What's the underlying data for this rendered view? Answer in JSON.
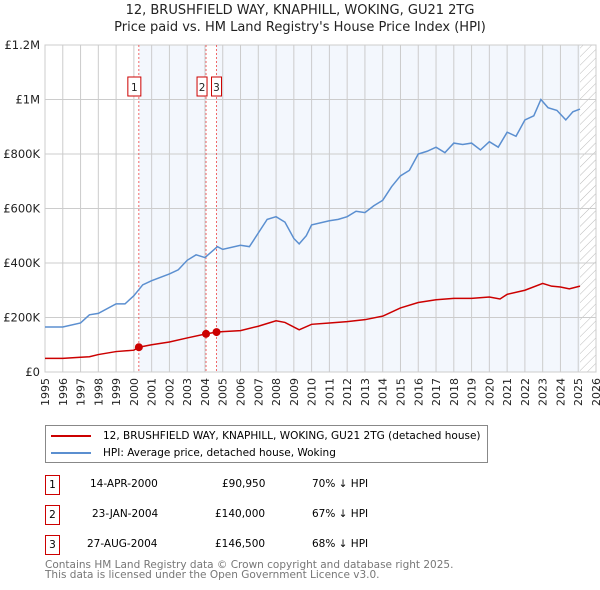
{
  "chart_data": {
    "type": "line",
    "title": "12, BRUSHFIELD WAY, KNAPHILL, WOKING, GU21 2TG",
    "subtitle": "Price paid vs. HM Land Registry's House Price Index (HPI)",
    "xlim": [
      1995,
      2026
    ],
    "ylim": [
      0,
      1200000
    ],
    "x_ticks": [
      "1995",
      "1996",
      "1997",
      "1998",
      "1999",
      "2000",
      "2001",
      "2002",
      "2003",
      "2004",
      "2005",
      "2006",
      "2007",
      "2008",
      "2009",
      "2010",
      "2011",
      "2012",
      "2013",
      "2014",
      "2015",
      "2016",
      "2017",
      "2018",
      "2019",
      "2020",
      "2021",
      "2022",
      "2023",
      "2024",
      "2025",
      "2026"
    ],
    "y_ticks": [
      {
        "v": 0,
        "label": "£0"
      },
      {
        "v": 200000,
        "label": "£200K"
      },
      {
        "v": 400000,
        "label": "£400K"
      },
      {
        "v": 600000,
        "label": "£600K"
      },
      {
        "v": 800000,
        "label": "£800K"
      },
      {
        "v": 1000000,
        "label": "£1M"
      },
      {
        "v": 1200000,
        "label": "£1.2M"
      }
    ],
    "grid": true,
    "series": [
      {
        "name": "12, BRUSHFIELD WAY, KNAPHILL, WOKING, GU21 2TG (detached house)",
        "color": "#cc0000",
        "x": [
          1995,
          1996,
          1997,
          1997.5,
          1998,
          1999,
          2000,
          2000.28,
          2001,
          2002,
          2003,
          2004.06,
          2004.65,
          2005,
          2006,
          2007,
          2007.5,
          2008,
          2008.5,
          2009.3,
          2010,
          2011,
          2012,
          2013,
          2014,
          2015,
          2016,
          2017,
          2018,
          2019,
          2020,
          2020.6,
          2021,
          2022,
          2023,
          2023.5,
          2024,
          2024.5,
          2025.1
        ],
        "y": [
          50000,
          50000,
          54000,
          56000,
          64000,
          75000,
          80000,
          90950,
          100000,
          110000,
          125000,
          140000,
          146500,
          148000,
          152000,
          168000,
          178000,
          188000,
          182000,
          155000,
          175000,
          180000,
          185000,
          192000,
          205000,
          235000,
          255000,
          265000,
          270000,
          270000,
          275000,
          268000,
          285000,
          300000,
          325000,
          315000,
          312000,
          305000,
          315000
        ]
      },
      {
        "name": "HPI: Average price, detached house, Woking",
        "color": "#5b8fd0",
        "x": [
          1995,
          1996,
          1997,
          1997.5,
          1998,
          1999,
          1999.5,
          2000,
          2000.5,
          2001,
          2002,
          2002.5,
          2003,
          2003.5,
          2004,
          2004.7,
          2005,
          2006,
          2006.5,
          2007,
          2007.5,
          2008,
          2008.5,
          2009,
          2009.3,
          2009.7,
          2010,
          2011,
          2011.5,
          2012,
          2012.5,
          2013,
          2013.5,
          2014,
          2014.5,
          2015,
          2015.5,
          2016,
          2016.5,
          2017,
          2017.5,
          2018,
          2018.5,
          2019,
          2019.5,
          2020,
          2020.5,
          2021,
          2021.5,
          2022,
          2022.5,
          2022.9,
          2023.3,
          2023.8,
          2024.3,
          2024.7,
          2025.1
        ],
        "y": [
          165000,
          165000,
          180000,
          210000,
          215000,
          250000,
          250000,
          280000,
          320000,
          335000,
          360000,
          375000,
          410000,
          430000,
          420000,
          460000,
          450000,
          465000,
          460000,
          510000,
          560000,
          570000,
          550000,
          490000,
          470000,
          500000,
          540000,
          555000,
          560000,
          570000,
          590000,
          585000,
          610000,
          630000,
          680000,
          720000,
          740000,
          800000,
          810000,
          825000,
          805000,
          840000,
          835000,
          840000,
          815000,
          845000,
          825000,
          880000,
          865000,
          925000,
          940000,
          1000000,
          970000,
          960000,
          925000,
          955000,
          965000
        ]
      }
    ],
    "sales": [
      {
        "n": "1",
        "x": 2000.28,
        "y": 90950
      },
      {
        "n": "2",
        "x": 2004.06,
        "y": 140000
      },
      {
        "n": "3",
        "x": 2004.65,
        "y": 146500
      }
    ],
    "future_hatch_from": 2025.1
  },
  "table": [
    {
      "n": "1",
      "date": "14-APR-2000",
      "price": "£90,950",
      "hpi": "70% ↓ HPI"
    },
    {
      "n": "2",
      "date": "23-JAN-2004",
      "price": "£140,000",
      "hpi": "67% ↓ HPI"
    },
    {
      "n": "3",
      "date": "27-AUG-2004",
      "price": "£146,500",
      "hpi": "68% ↓ HPI"
    }
  ],
  "footer": {
    "line1": "Contains HM Land Registry data © Crown copyright and database right 2025.",
    "line2": "This data is licensed under the Open Government Licence v3.0."
  }
}
